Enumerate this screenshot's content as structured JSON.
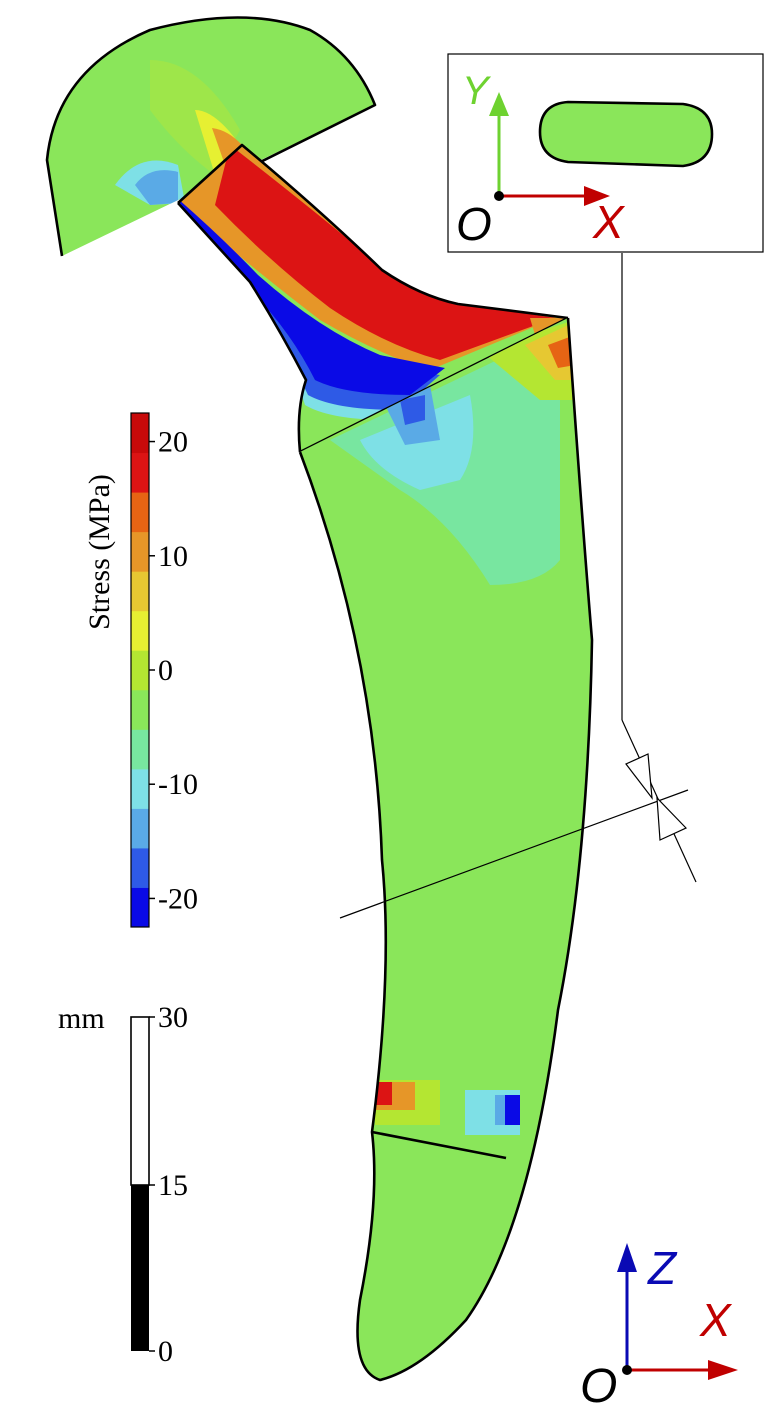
{
  "colors": {
    "background": "#ffffff",
    "stress_scale": [
      "#0a0ae6",
      "#2e5ae6",
      "#5aaae6",
      "#7ee0e6",
      "#78e6a0",
      "#8ae65a",
      "#b4e632",
      "#e6f032",
      "#e6c832",
      "#e69628",
      "#e66414",
      "#dc1414",
      "#c80a0a"
    ],
    "body_green": "#8ae65a",
    "tension_red": "#dc1414",
    "compression_blue": "#0a0ae6",
    "axis_x": "#c00000",
    "axis_y": "#6ed230",
    "axis_z": "#0a0ab4",
    "mm_bar_dark": "#000000",
    "mm_bar_light": "#ffffff"
  },
  "stress_legend": {
    "label": "Stress (MPa)",
    "ticks": [
      "20",
      "10",
      "0",
      "-10",
      "-20"
    ],
    "range_mpa": [
      -22.5,
      22.5
    ]
  },
  "length_legend": {
    "unit": "mm",
    "ticks": [
      "30",
      "15",
      "0"
    ]
  },
  "section_inset": {
    "axes": {
      "x": "X",
      "y": "Y",
      "origin": "O"
    }
  },
  "main_axes": {
    "x": "X",
    "z": "Z",
    "origin": "O"
  }
}
